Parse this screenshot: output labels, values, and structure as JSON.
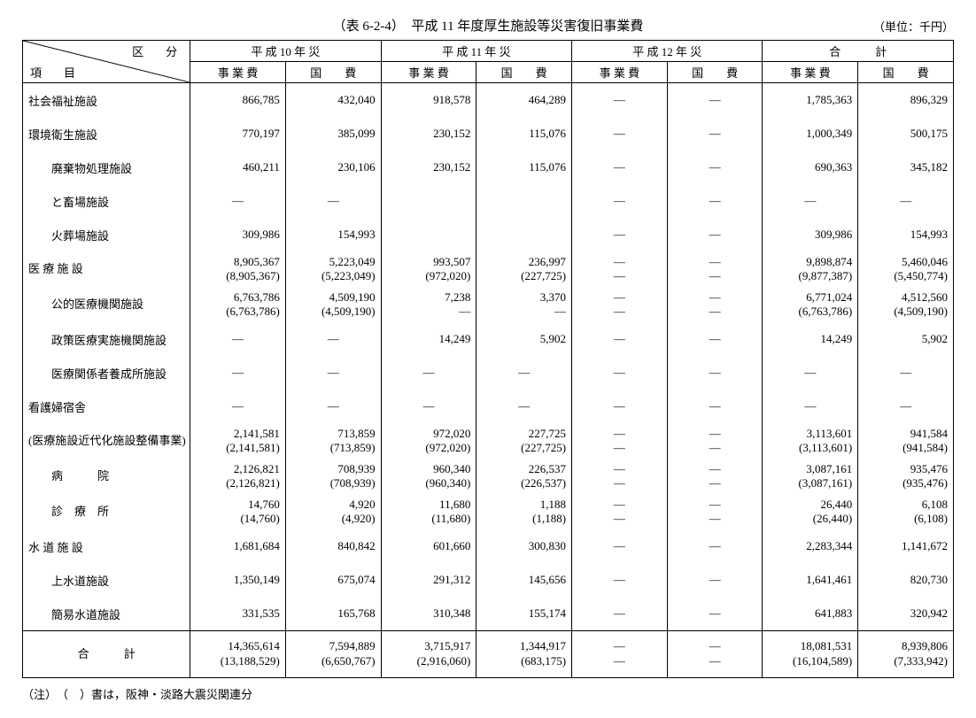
{
  "title": "（表 6-2-4）　平成 11 年度厚生施設等災害復旧事業費",
  "unit_label": "（単位：千円）",
  "note": "（注）　（　）書は，阪神・淡路大震災関連分",
  "head": {
    "corner_top": "区　分",
    "corner_bottom": "項　目",
    "groups": [
      "平 成 10 年 災",
      "平 成 11 年 災",
      "平 成 12 年 災",
      "合　　　計"
    ],
    "sub_biz": "事 業 費",
    "sub_gov": "国　　費"
  },
  "rows": [
    {
      "label": "社会福祉施設",
      "indent": 0,
      "cells": [
        "866,785",
        "432,040",
        "918,578",
        "464,289",
        "—",
        "—",
        "1,785,363",
        "896,329"
      ]
    },
    {
      "label": "環境衛生施設",
      "indent": 0,
      "cells": [
        "770,197",
        "385,099",
        "230,152",
        "115,076",
        "—",
        "—",
        "1,000,349",
        "500,175"
      ]
    },
    {
      "label": "廃棄物処理施設",
      "indent": 1,
      "cells": [
        "460,211",
        "230,106",
        "230,152",
        "115,076",
        "—",
        "—",
        "690,363",
        "345,182"
      ]
    },
    {
      "label": "と畜場施設",
      "indent": 1,
      "cells": [
        "—",
        "—",
        "",
        "",
        "—",
        "—",
        "—",
        "—"
      ]
    },
    {
      "label": "火葬場施設",
      "indent": 1,
      "cells": [
        "309,986",
        "154,993",
        "",
        "",
        "—",
        "—",
        "309,986",
        "154,993"
      ]
    },
    {
      "label": "医 療 施 設",
      "indent": 0,
      "dual": true,
      "cells": [
        "8,905,367",
        "5,223,049",
        "993,507",
        "236,997",
        "—",
        "—",
        "9,898,874",
        "5,460,046"
      ],
      "sub": [
        "(8,905,367)",
        "(5,223,049)",
        "(972,020)",
        "(227,725)",
        "—",
        "—",
        "(9,877,387)",
        "(5,450,774)"
      ]
    },
    {
      "label": "公的医療機関施設",
      "indent": 1,
      "dual": true,
      "cells": [
        "6,763,786",
        "4,509,190",
        "7,238",
        "3,370",
        "—",
        "—",
        "6,771,024",
        "4,512,560"
      ],
      "sub": [
        "(6,763,786)",
        "(4,509,190)",
        "—",
        "—",
        "—",
        "—",
        "(6,763,786)",
        "(4,509,190)"
      ]
    },
    {
      "label": "政策医療実施機関施設",
      "indent": 1,
      "cells": [
        "—",
        "—",
        "14,249",
        "5,902",
        "—",
        "—",
        "14,249",
        "5,902"
      ]
    },
    {
      "label": "医療関係者養成所施設",
      "indent": 1,
      "cells": [
        "—",
        "—",
        "—",
        "—",
        "—",
        "—",
        "—",
        "—"
      ]
    },
    {
      "label": "看護婦宿舎",
      "indent": 0,
      "cells": [
        "—",
        "—",
        "—",
        "—",
        "—",
        "—",
        "—",
        "—"
      ]
    },
    {
      "label": "(医療施設近代化施設整備事業)",
      "indent": 0,
      "dual": true,
      "cells": [
        "2,141,581",
        "713,859",
        "972,020",
        "227,725",
        "—",
        "—",
        "3,113,601",
        "941,584"
      ],
      "sub": [
        "(2,141,581)",
        "(713,859)",
        "(972,020)",
        "(227,725)",
        "—",
        "—",
        "(3,113,601)",
        "(941,584)"
      ]
    },
    {
      "label": "病　　　院",
      "indent": 1,
      "dual": true,
      "cells": [
        "2,126,821",
        "708,939",
        "960,340",
        "226,537",
        "—",
        "—",
        "3,087,161",
        "935,476"
      ],
      "sub": [
        "(2,126,821)",
        "(708,939)",
        "(960,340)",
        "(226,537)",
        "—",
        "—",
        "(3,087,161)",
        "(935,476)"
      ]
    },
    {
      "label": "診　療　所",
      "indent": 1,
      "dual": true,
      "cells": [
        "14,760",
        "4,920",
        "11,680",
        "1,188",
        "—",
        "—",
        "26,440",
        "6,108"
      ],
      "sub": [
        "(14,760)",
        "(4,920)",
        "(11,680)",
        "(1,188)",
        "—",
        "—",
        "(26,440)",
        "(6,108)"
      ]
    },
    {
      "label": "水 道 施 設",
      "indent": 0,
      "cells": [
        "1,681,684",
        "840,842",
        "601,660",
        "300,830",
        "—",
        "—",
        "2,283,344",
        "1,141,672"
      ]
    },
    {
      "label": "上水道施設",
      "indent": 1,
      "cells": [
        "1,350,149",
        "675,074",
        "291,312",
        "145,656",
        "—",
        "—",
        "1,641,461",
        "820,730"
      ]
    },
    {
      "label": "簡易水道施設",
      "indent": 1,
      "cells": [
        "331,535",
        "165,768",
        "310,348",
        "155,174",
        "—",
        "—",
        "641,883",
        "320,942"
      ]
    }
  ],
  "total": {
    "label": "合　　　計",
    "cells": [
      "14,365,614",
      "7,594,889",
      "3,715,917",
      "1,344,917",
      "—",
      "—",
      "18,081,531",
      "8,939,806"
    ],
    "sub": [
      "(13,188,529)",
      "(6,650,767)",
      "(2,916,060)",
      "(683,175)",
      "—",
      "—",
      "(16,104,589)",
      "(7,333,942)"
    ]
  }
}
